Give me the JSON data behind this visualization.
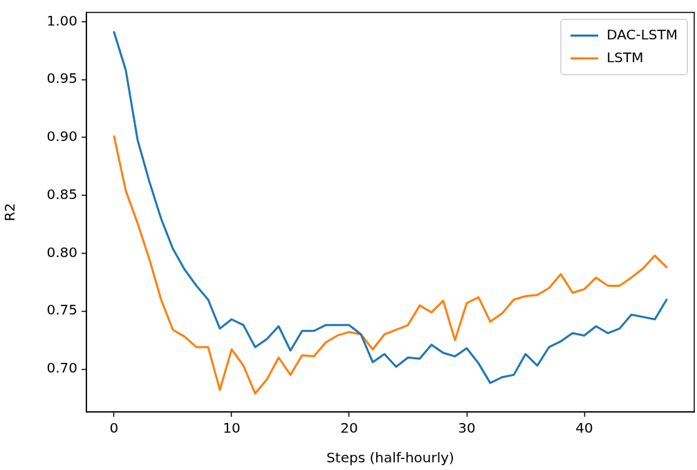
{
  "chart_data": {
    "type": "line",
    "xlabel": "Steps (half-hourly)",
    "ylabel": "R2",
    "x": [
      0,
      1,
      2,
      3,
      4,
      5,
      6,
      7,
      8,
      9,
      10,
      11,
      12,
      13,
      14,
      15,
      16,
      17,
      18,
      19,
      20,
      21,
      22,
      23,
      24,
      25,
      26,
      27,
      28,
      29,
      30,
      31,
      32,
      33,
      34,
      35,
      36,
      37,
      38,
      39,
      40,
      41,
      42,
      43,
      44,
      45,
      46,
      47
    ],
    "series": [
      {
        "name": "DAC-LSTM",
        "color": "#1f77b4",
        "values": [
          0.991,
          0.958,
          0.898,
          0.862,
          0.83,
          0.804,
          0.786,
          0.772,
          0.76,
          0.735,
          0.743,
          0.738,
          0.719,
          0.726,
          0.737,
          0.716,
          0.733,
          0.733,
          0.738,
          0.738,
          0.738,
          0.73,
          0.706,
          0.713,
          0.702,
          0.71,
          0.709,
          0.721,
          0.714,
          0.711,
          0.718,
          0.705,
          0.688,
          0.693,
          0.695,
          0.713,
          0.703,
          0.719,
          0.724,
          0.731,
          0.729,
          0.737,
          0.731,
          0.735,
          0.747,
          0.745,
          0.743,
          0.76
        ]
      },
      {
        "name": "LSTM",
        "color": "#ff7f0e",
        "values": [
          0.901,
          0.854,
          0.826,
          0.795,
          0.76,
          0.734,
          0.728,
          0.719,
          0.719,
          0.682,
          0.717,
          0.703,
          0.679,
          0.691,
          0.71,
          0.695,
          0.712,
          0.711,
          0.723,
          0.729,
          0.732,
          0.73,
          0.717,
          0.73,
          0.734,
          0.738,
          0.755,
          0.749,
          0.759,
          0.725,
          0.757,
          0.762,
          0.741,
          0.748,
          0.76,
          0.763,
          0.764,
          0.77,
          0.782,
          0.766,
          0.769,
          0.779,
          0.772,
          0.772,
          0.779,
          0.787,
          0.798,
          0.788
        ]
      }
    ],
    "xlim": [
      -2.35,
      49.35
    ],
    "xticks": [
      0,
      10,
      20,
      30,
      40
    ],
    "ylim": [
      0.663,
      1.008
    ],
    "yticks": [
      {
        "value": 0.7,
        "label": "0.70"
      },
      {
        "value": 0.75,
        "label": "0.75"
      },
      {
        "value": 0.8,
        "label": "0.80"
      },
      {
        "value": 0.85,
        "label": "0.85"
      },
      {
        "value": 0.9,
        "label": "0.90"
      },
      {
        "value": 0.95,
        "label": "0.95"
      },
      {
        "value": 1.0,
        "label": "1.00"
      }
    ],
    "legend": "top right",
    "grid": false,
    "marker": "none",
    "line_style": "solid"
  }
}
